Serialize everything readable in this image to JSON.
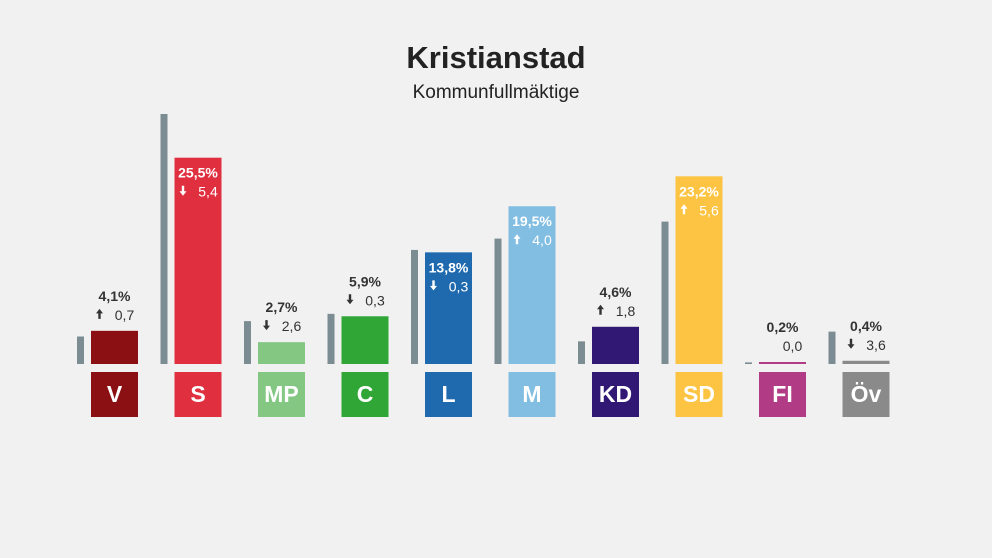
{
  "title": "Kristianstad",
  "subtitle": "Kommunfullmäktige",
  "chart_data": {
    "type": "bar",
    "title": "Kristianstad",
    "subtitle": "Kommunfullmäktige",
    "unit": "%",
    "categories": [
      "V",
      "S",
      "MP",
      "C",
      "L",
      "M",
      "KD",
      "SD",
      "FI",
      "Öv"
    ],
    "series": [
      {
        "values": [
          4.1,
          25.5,
          2.7,
          5.9,
          13.8,
          19.5,
          4.6,
          23.2,
          0.2,
          0.4
        ]
      },
      {
        "values": [
          3.4,
          30.9,
          5.3,
          6.2,
          14.1,
          15.5,
          2.8,
          17.6,
          0.2,
          4.0
        ]
      }
    ],
    "labels": [
      "4,1%",
      "25,5%",
      "2,7%",
      "5,9%",
      "13,8%",
      "19,5%",
      "4,6%",
      "23,2%",
      "0,2%",
      "0,4%"
    ],
    "changes": [
      "0,7",
      "5,4",
      "2,6",
      "0,3",
      "0,3",
      "4,0",
      "1,8",
      "5,6",
      "0,0",
      "3,6"
    ],
    "change_direction": [
      "up",
      "down",
      "down",
      "down",
      "down",
      "up",
      "up",
      "up",
      "none",
      "down"
    ],
    "colors": [
      "#8b1013",
      "#e03040",
      "#83c783",
      "#30a637",
      "#1f6aae",
      "#82bde2",
      "#311875",
      "#fdc443",
      "#b23b85",
      "#8a8a8a"
    ],
    "previous_color": "#7b8c93",
    "ylim": [
      0,
      30.9
    ]
  }
}
